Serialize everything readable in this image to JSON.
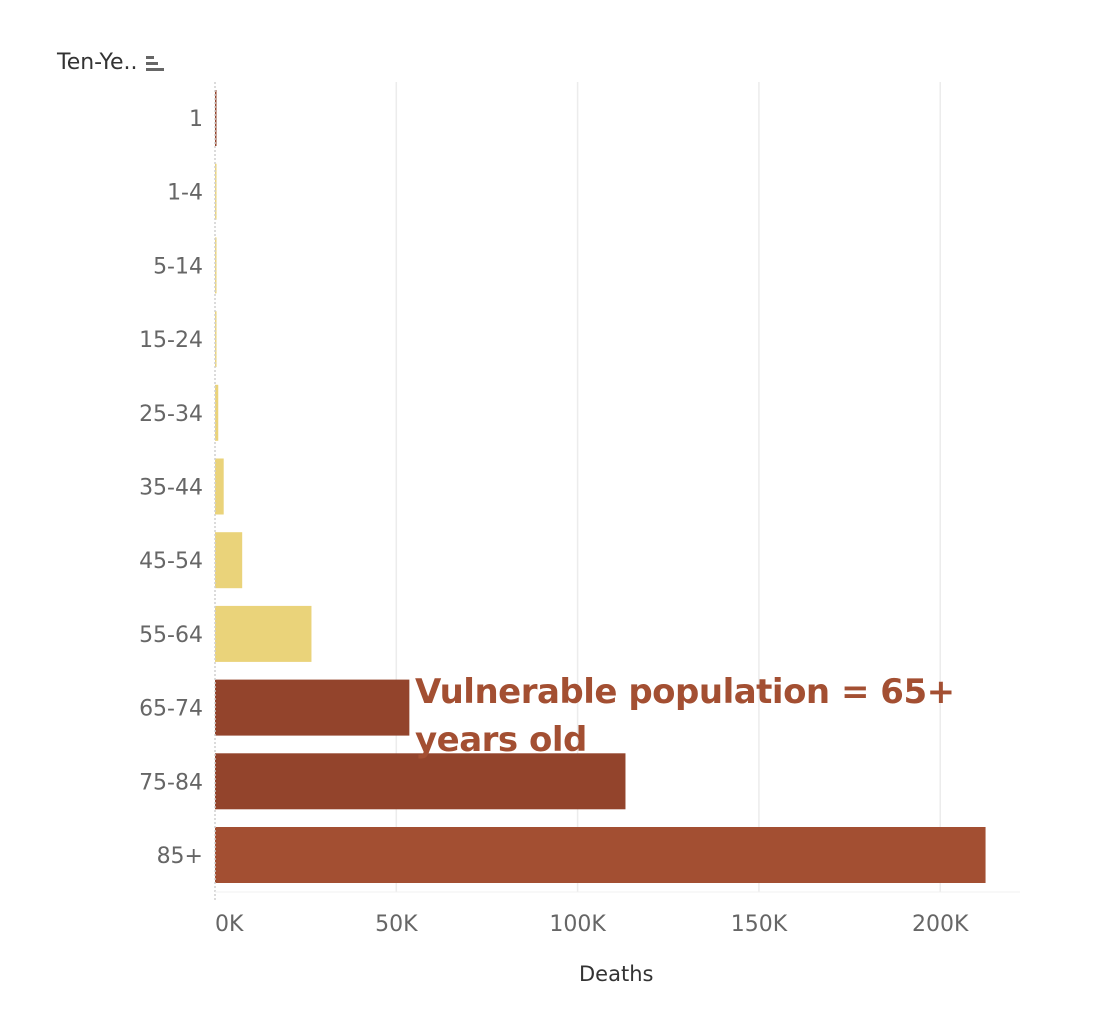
{
  "chart_data": {
    "type": "bar",
    "orientation": "horizontal",
    "y_header": "Ten-Ye..",
    "xlabel": "Deaths",
    "categories": [
      "1",
      "1-4",
      "5-14",
      "15-24",
      "25-34",
      "35-44",
      "45-54",
      "55-64",
      "65-74",
      "75-84",
      "85+"
    ],
    "values": [
      300,
      80,
      100,
      350,
      900,
      2400,
      7500,
      26600,
      53600,
      113200,
      212500
    ],
    "xlim": [
      0,
      222000
    ],
    "x_ticks": [
      0,
      50000,
      100000,
      150000,
      200000
    ],
    "x_tick_labels": [
      "0K",
      "50K",
      "100K",
      "150K",
      "200K"
    ],
    "grid": true,
    "colors": {
      "vulnerable": "#93442c",
      "oldest": "#a34f32",
      "other": "#ead37a",
      "annotation": "#a34f32",
      "axis_text": "#666666",
      "grid": "#ececec"
    },
    "bar_color_groups": [
      "vulnerable",
      "other",
      "other",
      "other",
      "other",
      "other",
      "other",
      "other",
      "vulnerable",
      "vulnerable",
      "oldest"
    ],
    "annotation": "Vulnerable population = 65+ years old"
  }
}
